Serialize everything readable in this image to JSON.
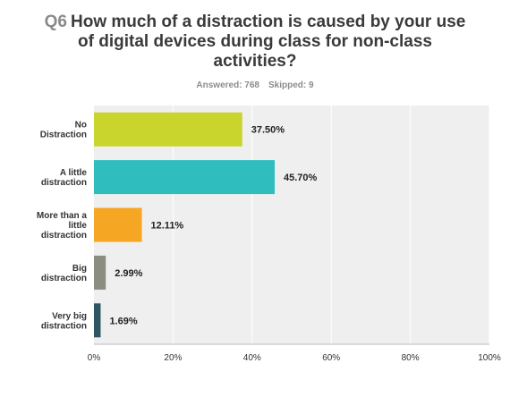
{
  "question": {
    "number": "Q6",
    "text": "How much of a distraction is caused by your use of digital devices during class for non-class activities?"
  },
  "stats": {
    "answered": "Answered: 768",
    "skipped": "Skipped: 9"
  },
  "chart_data": {
    "type": "bar",
    "orientation": "horizontal",
    "categories": [
      [
        "No",
        "Distraction"
      ],
      [
        "A little",
        "distraction"
      ],
      [
        "More than a",
        "little",
        "distraction"
      ],
      [
        "Big",
        "distraction"
      ],
      [
        "Very big",
        "distraction"
      ]
    ],
    "values": [
      37.5,
      45.7,
      12.11,
      2.99,
      1.69
    ],
    "value_labels": [
      "37.50%",
      "45.70%",
      "12.11%",
      "2.99%",
      "1.69%"
    ],
    "colors": [
      "#c9d52c",
      "#2fbdbd",
      "#f5a623",
      "#8a8d80",
      "#2c5763"
    ],
    "xlim": [
      0,
      100
    ],
    "xticks": [
      {
        "value": 0,
        "label": "0%"
      },
      {
        "value": 20,
        "label": "20%"
      },
      {
        "value": 40,
        "label": "40%"
      },
      {
        "value": 60,
        "label": "60%"
      },
      {
        "value": 80,
        "label": "80%"
      },
      {
        "value": 100,
        "label": "100%"
      }
    ],
    "grid": true,
    "plot_background": "#efefef",
    "grid_color": "#ffffff"
  }
}
